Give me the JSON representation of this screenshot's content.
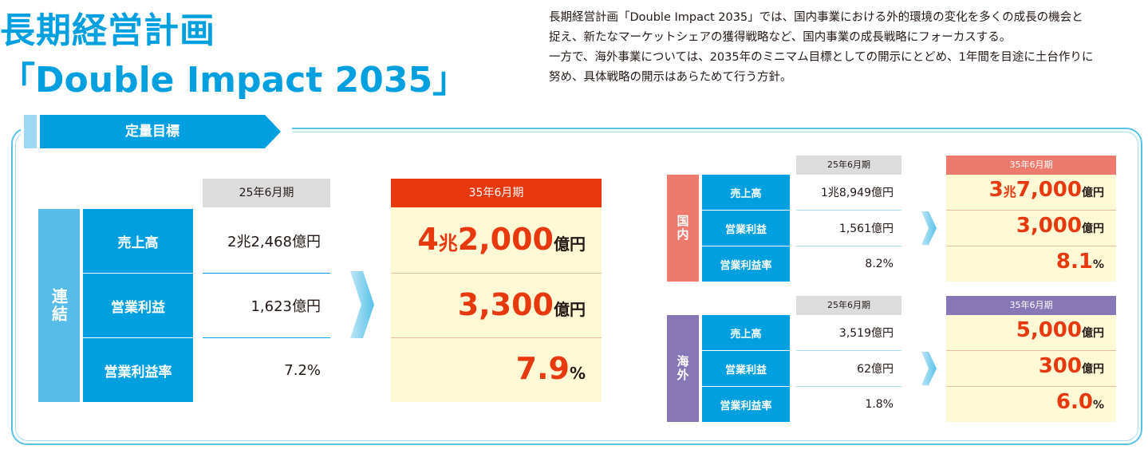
{
  "header": {
    "title_line1": "長期経営計画",
    "title_line2": "「Double Impact 2035」",
    "description_lines": [
      "長期経営計画「Double Impact 2035」では、国内事業における外的環境の変化を多くの成長の機会と",
      "捉え、新たなマーケットシェアの獲得戦略など、国内事業の成長戦略にフォーカスする。",
      "一方で、海外事業については、2035年のミニマム目標としての開示にとどめ、1年間を目途に土台作りに",
      "努め、具体戦略の開示はあらためて行う方針。"
    ]
  },
  "tab_label": "定量目標",
  "consolidated": {
    "side_label": "連結",
    "current_header": "25年6月期",
    "target_header": "35年6月期",
    "rows": [
      {
        "label": "売上高",
        "current": "2兆2,468億円",
        "target_big1": "4",
        "target_small1": "兆",
        "target_big2": "2,000",
        "target_unit": "億円"
      },
      {
        "label": "営業利益",
        "current": "1,623億円",
        "target_big": "3,300",
        "target_unit": "億円"
      },
      {
        "label": "営業利益率",
        "current": "7.2%",
        "target_big": "7.9",
        "target_unit": "%"
      }
    ]
  },
  "domestic": {
    "side_label": "国内",
    "current_header": "25年6月期",
    "target_header": "35年6月期",
    "rows": [
      {
        "label": "売上高",
        "current": "1兆8,949億円",
        "target_big1": "3",
        "target_small1": "兆",
        "target_big2": "7,000",
        "target_unit": "億円"
      },
      {
        "label": "営業利益",
        "current": "1,561億円",
        "target_big": "3,000",
        "target_unit": "億円"
      },
      {
        "label": "営業利益率",
        "current": "8.2%",
        "target_big": "8.1",
        "target_unit": "%"
      }
    ]
  },
  "overseas": {
    "side_label": "海外",
    "current_header": "25年6月期",
    "target_header": "35年6月期",
    "rows": [
      {
        "label": "売上高",
        "current": "3,519億円",
        "target_big": "5,000",
        "target_unit": "億円"
      },
      {
        "label": "営業利益",
        "current": "62億円",
        "target_big": "300",
        "target_unit": "億円"
      },
      {
        "label": "営業利益率",
        "current": "1.8%",
        "target_big": "6.0",
        "target_unit": "%"
      }
    ]
  },
  "colors": {
    "brand_blue": "#00a0e0",
    "target_red": "#e8380d",
    "domestic_pink": "#ee7a6e",
    "overseas_purple": "#8877b6",
    "target_bg": "#fff9d6"
  }
}
